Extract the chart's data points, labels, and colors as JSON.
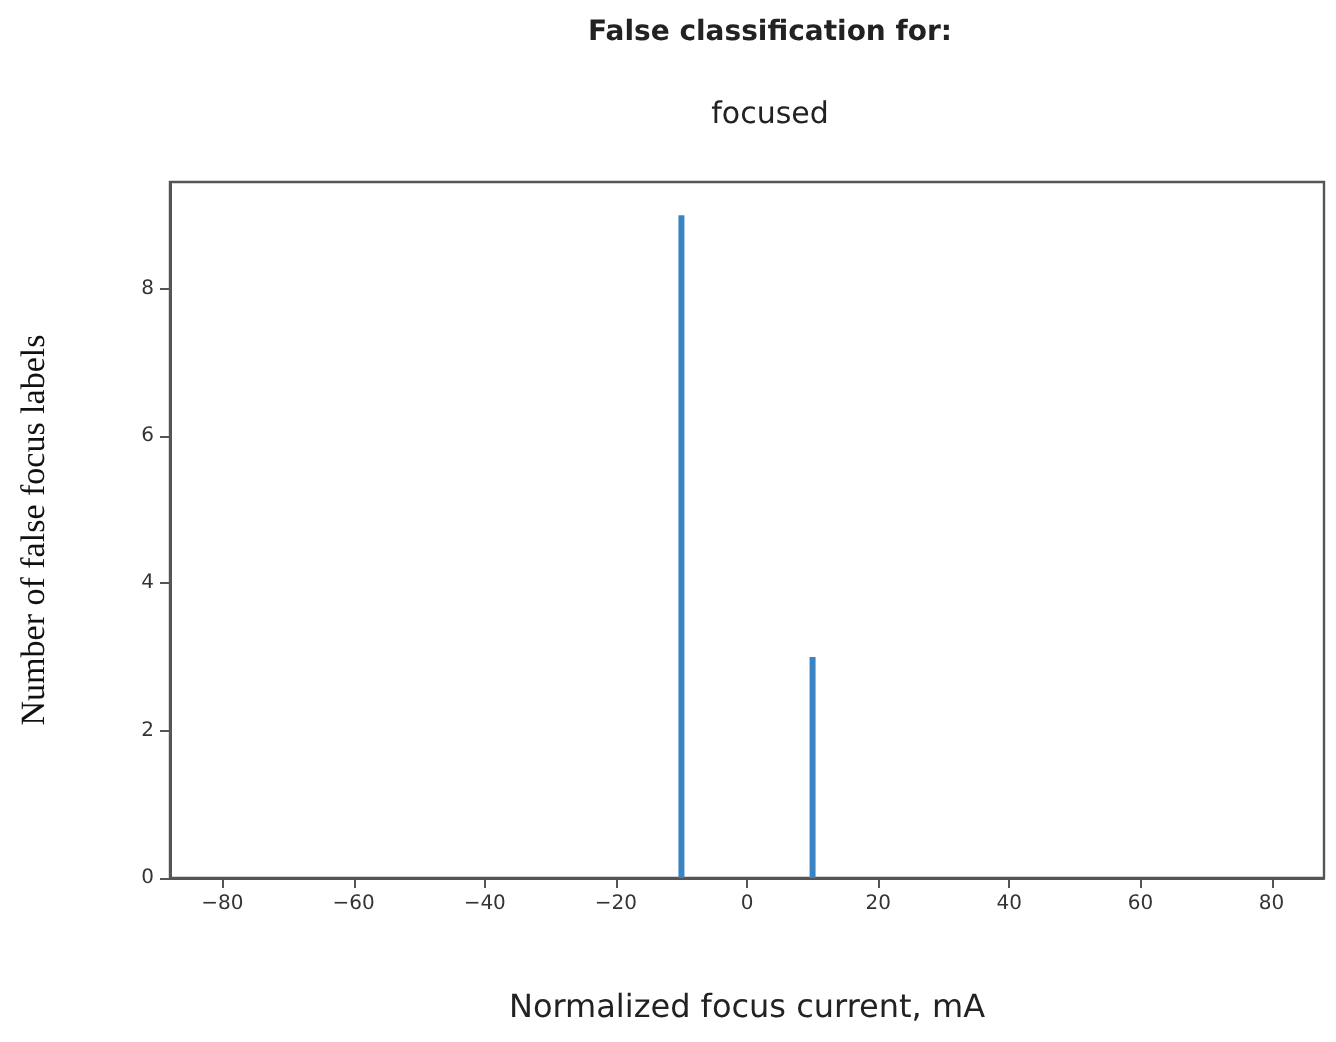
{
  "chart_data": {
    "type": "bar",
    "title": "False classification for:",
    "subtitle": "focused",
    "xlabel": "Normalized focus current, mA",
    "ylabel": "Number of false focus labels",
    "x": [
      -10,
      10
    ],
    "values": [
      9,
      3
    ],
    "color": "#3b84c4",
    "xlim": [
      -88,
      88
    ],
    "xticks": [
      -80,
      -60,
      -40,
      -20,
      0,
      20,
      40,
      60,
      80
    ],
    "ylim": [
      0,
      9.45
    ],
    "yticks": [
      0,
      2,
      4,
      6,
      8
    ],
    "grid": false
  }
}
